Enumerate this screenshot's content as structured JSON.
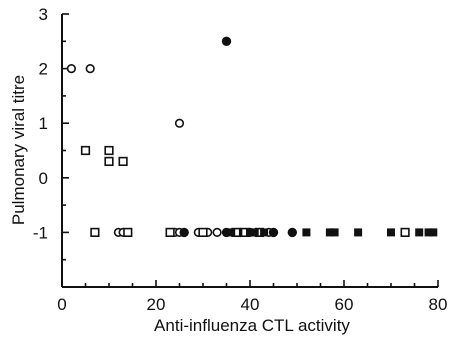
{
  "chart_data": {
    "type": "scatter",
    "title": "",
    "xlabel": "Anti-influenza CTL activity",
    "ylabel": "Pulmonary viral titre",
    "xlim": [
      0,
      80
    ],
    "ylim": [
      -2,
      3
    ],
    "xticks": [
      0,
      20,
      40,
      60,
      80
    ],
    "yticks": [
      -1,
      0,
      1,
      2,
      3
    ],
    "grid": false,
    "legend": "none",
    "series": [
      {
        "marker": "open-circle",
        "points": [
          [
            2,
            2
          ],
          [
            6,
            2
          ],
          [
            25,
            1
          ],
          [
            12,
            -1
          ],
          [
            13,
            -1
          ],
          [
            24,
            -1
          ],
          [
            25,
            -1
          ],
          [
            29,
            -1
          ],
          [
            31,
            -1
          ],
          [
            33,
            -1
          ],
          [
            40,
            -1
          ],
          [
            44,
            -1
          ]
        ]
      },
      {
        "marker": "filled-circle",
        "points": [
          [
            35,
            2.5
          ],
          [
            26,
            -1
          ],
          [
            35,
            -1
          ],
          [
            38,
            -1
          ],
          [
            45,
            -1
          ],
          [
            49,
            -1
          ]
        ]
      },
      {
        "marker": "open-square",
        "points": [
          [
            5,
            0.5
          ],
          [
            10,
            0.5
          ],
          [
            10,
            0.3
          ],
          [
            13,
            0.3
          ],
          [
            7,
            -1
          ],
          [
            14,
            -1
          ],
          [
            23,
            -1
          ],
          [
            30,
            -1
          ],
          [
            37,
            -1
          ],
          [
            39,
            -1
          ],
          [
            42,
            -1
          ],
          [
            73,
            -1
          ]
        ]
      },
      {
        "marker": "filled-square",
        "points": [
          [
            36,
            -1
          ],
          [
            40,
            -1
          ],
          [
            41,
            -1
          ],
          [
            43,
            -1
          ],
          [
            52,
            -1
          ],
          [
            57,
            -1
          ],
          [
            58,
            -1
          ],
          [
            63,
            -1
          ],
          [
            70,
            -1
          ],
          [
            76,
            -1
          ],
          [
            78,
            -1
          ],
          [
            79,
            -1
          ]
        ]
      }
    ]
  }
}
